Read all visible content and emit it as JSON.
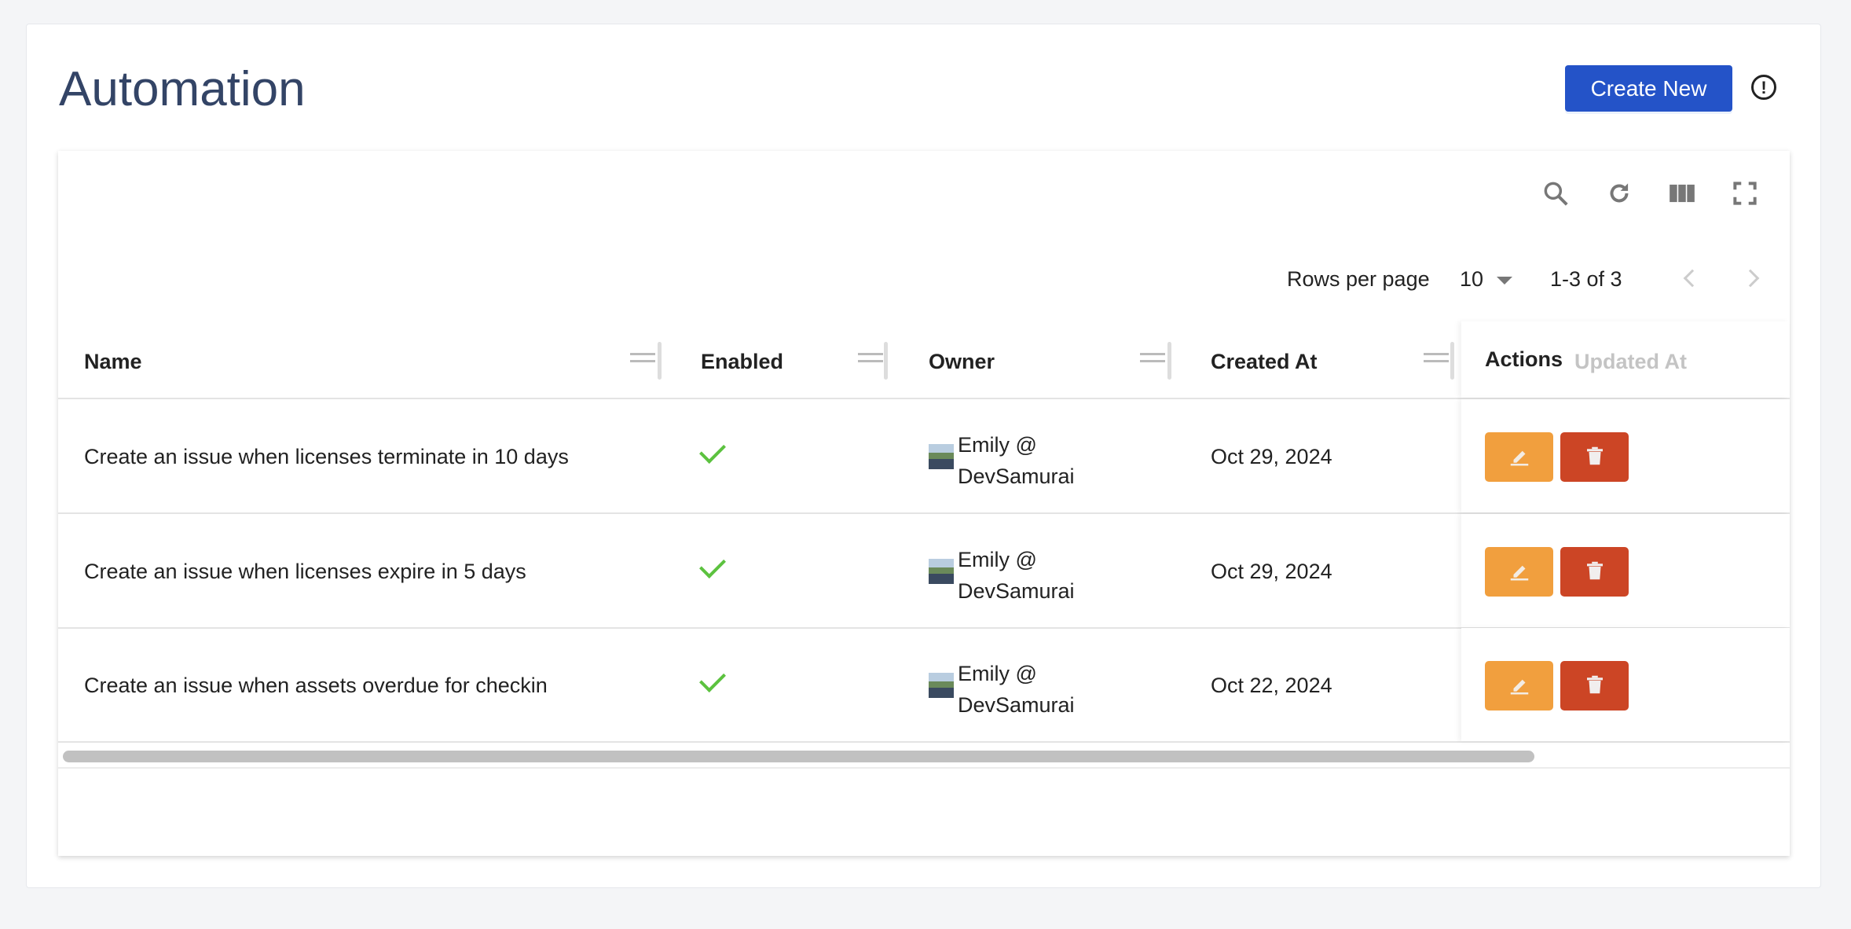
{
  "page": {
    "title": "Automation",
    "create_label": "Create New",
    "info_icon": "info-circle-icon"
  },
  "toolbar": {
    "icons": [
      "search-icon",
      "refresh-icon",
      "columns-icon",
      "fullscreen-icon"
    ]
  },
  "pagination": {
    "rows_per_page_label": "Rows per page",
    "rows_per_page": "10",
    "range": "1-3 of 3"
  },
  "table": {
    "headers": {
      "name": "Name",
      "enabled": "Enabled",
      "owner": "Owner",
      "created_at": "Created At",
      "updated_at": "Updated At",
      "actions": "Actions"
    },
    "rows": [
      {
        "name": "Create an issue when licenses terminate in 10 days",
        "enabled": true,
        "owner_line1": "Emily @",
        "owner_line2": "DevSamurai",
        "created_at": "Oct 29, 2024"
      },
      {
        "name": "Create an issue when licenses expire in 5 days",
        "enabled": true,
        "owner_line1": "Emily @",
        "owner_line2": "DevSamurai",
        "created_at": "Oct 29, 2024"
      },
      {
        "name": "Create an issue when assets overdue for checkin",
        "enabled": true,
        "owner_line1": "Emily @",
        "owner_line2": "DevSamurai",
        "created_at": "Oct 22, 2024"
      }
    ]
  },
  "colors": {
    "primary": "#2453c8",
    "edit": "#f19f3e",
    "delete": "#cc4525",
    "check": "#5cc23f",
    "title": "#334466"
  }
}
